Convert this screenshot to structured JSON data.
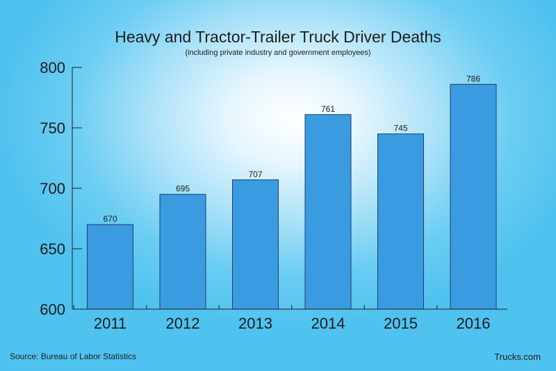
{
  "chart_data": {
    "type": "bar",
    "title": "Heavy and Tractor-Trailer Truck Driver Deaths",
    "subtitle": "(including private industry and government employees)",
    "categories": [
      "2011",
      "2012",
      "2013",
      "2014",
      "2015",
      "2016"
    ],
    "values": [
      670,
      695,
      707,
      761,
      745,
      786
    ],
    "data_labels": [
      "670",
      "695",
      "707",
      "761",
      "745",
      "786"
    ],
    "y_ticks": [
      600,
      650,
      700,
      750,
      800
    ],
    "ylim": [
      600,
      800
    ],
    "xlabel": "",
    "ylabel": "",
    "grid": false,
    "legend": "none",
    "colors": {
      "bar": "#3a9be0",
      "bar_stroke": "#1f3f66",
      "axis": "#1d1d1d",
      "text": "#1d1d1d"
    }
  },
  "footer": {
    "source": "Source: Bureau of Labor Statistics",
    "brand": "Trucks.com"
  }
}
